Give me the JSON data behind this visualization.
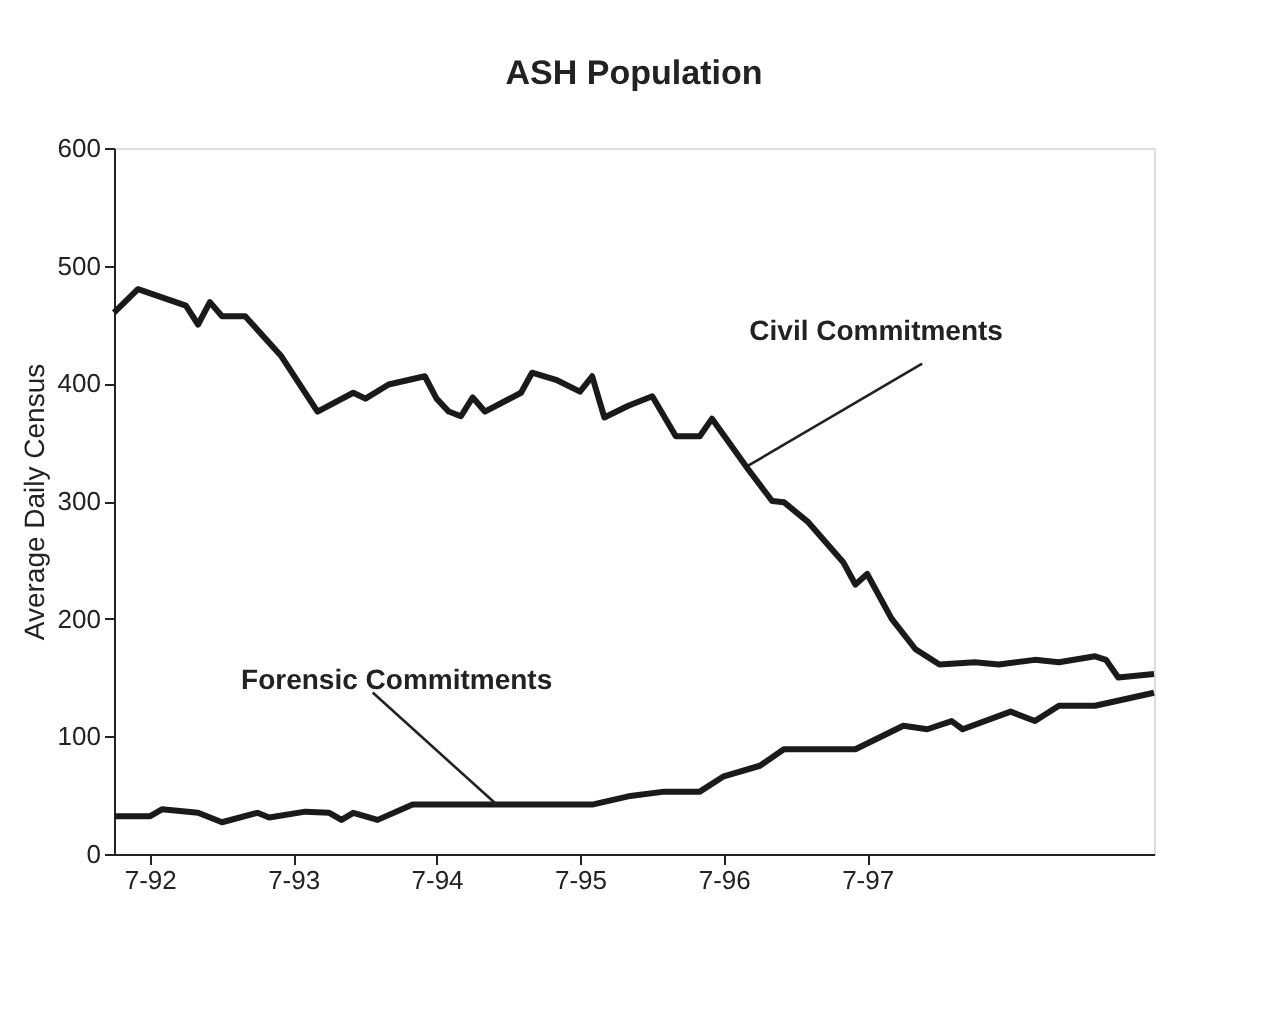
{
  "chart_data": {
    "type": "line",
    "title": "ASH Population",
    "ylabel": "Average Daily Census",
    "xlim": [
      "1992-04",
      "1999-07"
    ],
    "xticks": [
      {
        "value": "1992-07",
        "label": "7-92"
      },
      {
        "value": "1993-07",
        "label": "7-93"
      },
      {
        "value": "1994-07",
        "label": "7-94"
      },
      {
        "value": "1995-07",
        "label": "7-95"
      },
      {
        "value": "1996-07",
        "label": "7-96"
      },
      {
        "value": "1997-07",
        "label": "7-97"
      }
    ],
    "ylim": [
      0,
      600
    ],
    "yticks": [
      0,
      100,
      200,
      300,
      400,
      500,
      600
    ],
    "grid": false,
    "marker": "none",
    "line_style": "solid",
    "series": [
      {
        "color": "#1a1a1a",
        "x": [
          "1992-04",
          "1992-06",
          "1992-10",
          "1992-11",
          "1992-12",
          "1993-01",
          "1993-03",
          "1993-06",
          "1993-09",
          "1993-12",
          "1994-01",
          "1994-03",
          "1994-06",
          "1994-07",
          "1994-08",
          "1994-09",
          "1994-10",
          "1994-11",
          "1995-02",
          "1995-03",
          "1995-05",
          "1995-07",
          "1995-08",
          "1995-09",
          "1995-11",
          "1996-01",
          "1996-03",
          "1996-05",
          "1996-06",
          "1996-09",
          "1996-11",
          "1996-12",
          "1997-02",
          "1997-05",
          "1997-06",
          "1997-07",
          "1997-09",
          "1997-11",
          "1998-01",
          "1998-04",
          "1998-06",
          "1998-09",
          "1998-11",
          "1999-02",
          "1999-03",
          "1999-04",
          "1999-07"
        ],
        "values": [
          460,
          480,
          466,
          450,
          469,
          457,
          457,
          423,
          376,
          392,
          387,
          399,
          406,
          387,
          376,
          372,
          388,
          376,
          392,
          409,
          403,
          393,
          406,
          371,
          381,
          389,
          355,
          355,
          370,
          327,
          300,
          299,
          282,
          248,
          229,
          238,
          200,
          174,
          161,
          163,
          161,
          165,
          163,
          168,
          165,
          150,
          153
        ]
      },
      {
        "color": "#1a1a1a",
        "x": [
          "1992-04",
          "1992-07",
          "1992-08",
          "1992-11",
          "1993-01",
          "1993-04",
          "1993-05",
          "1993-08",
          "1993-10",
          "1993-11",
          "1993-12",
          "1994-02",
          "1994-05",
          "1995-08",
          "1995-11",
          "1996-02",
          "1996-05",
          "1996-07",
          "1996-10",
          "1996-12",
          "1997-06",
          "1997-10",
          "1997-12",
          "1998-02",
          "1998-03",
          "1998-07",
          "1998-09",
          "1998-11",
          "1999-02",
          "1999-07"
        ],
        "values": [
          32,
          32,
          38,
          35,
          27,
          35,
          31,
          36,
          35,
          29,
          35,
          29,
          42,
          42,
          49,
          53,
          53,
          66,
          75,
          89,
          89,
          109,
          106,
          113,
          106,
          121,
          113,
          126,
          126,
          137
        ]
      }
    ],
    "annotations": [
      {
        "text": "Civil Commitments",
        "x": "1996-09",
        "y": 330
      },
      {
        "text": "Forensic Commitments",
        "x": "1994-12",
        "y": 42
      }
    ]
  }
}
